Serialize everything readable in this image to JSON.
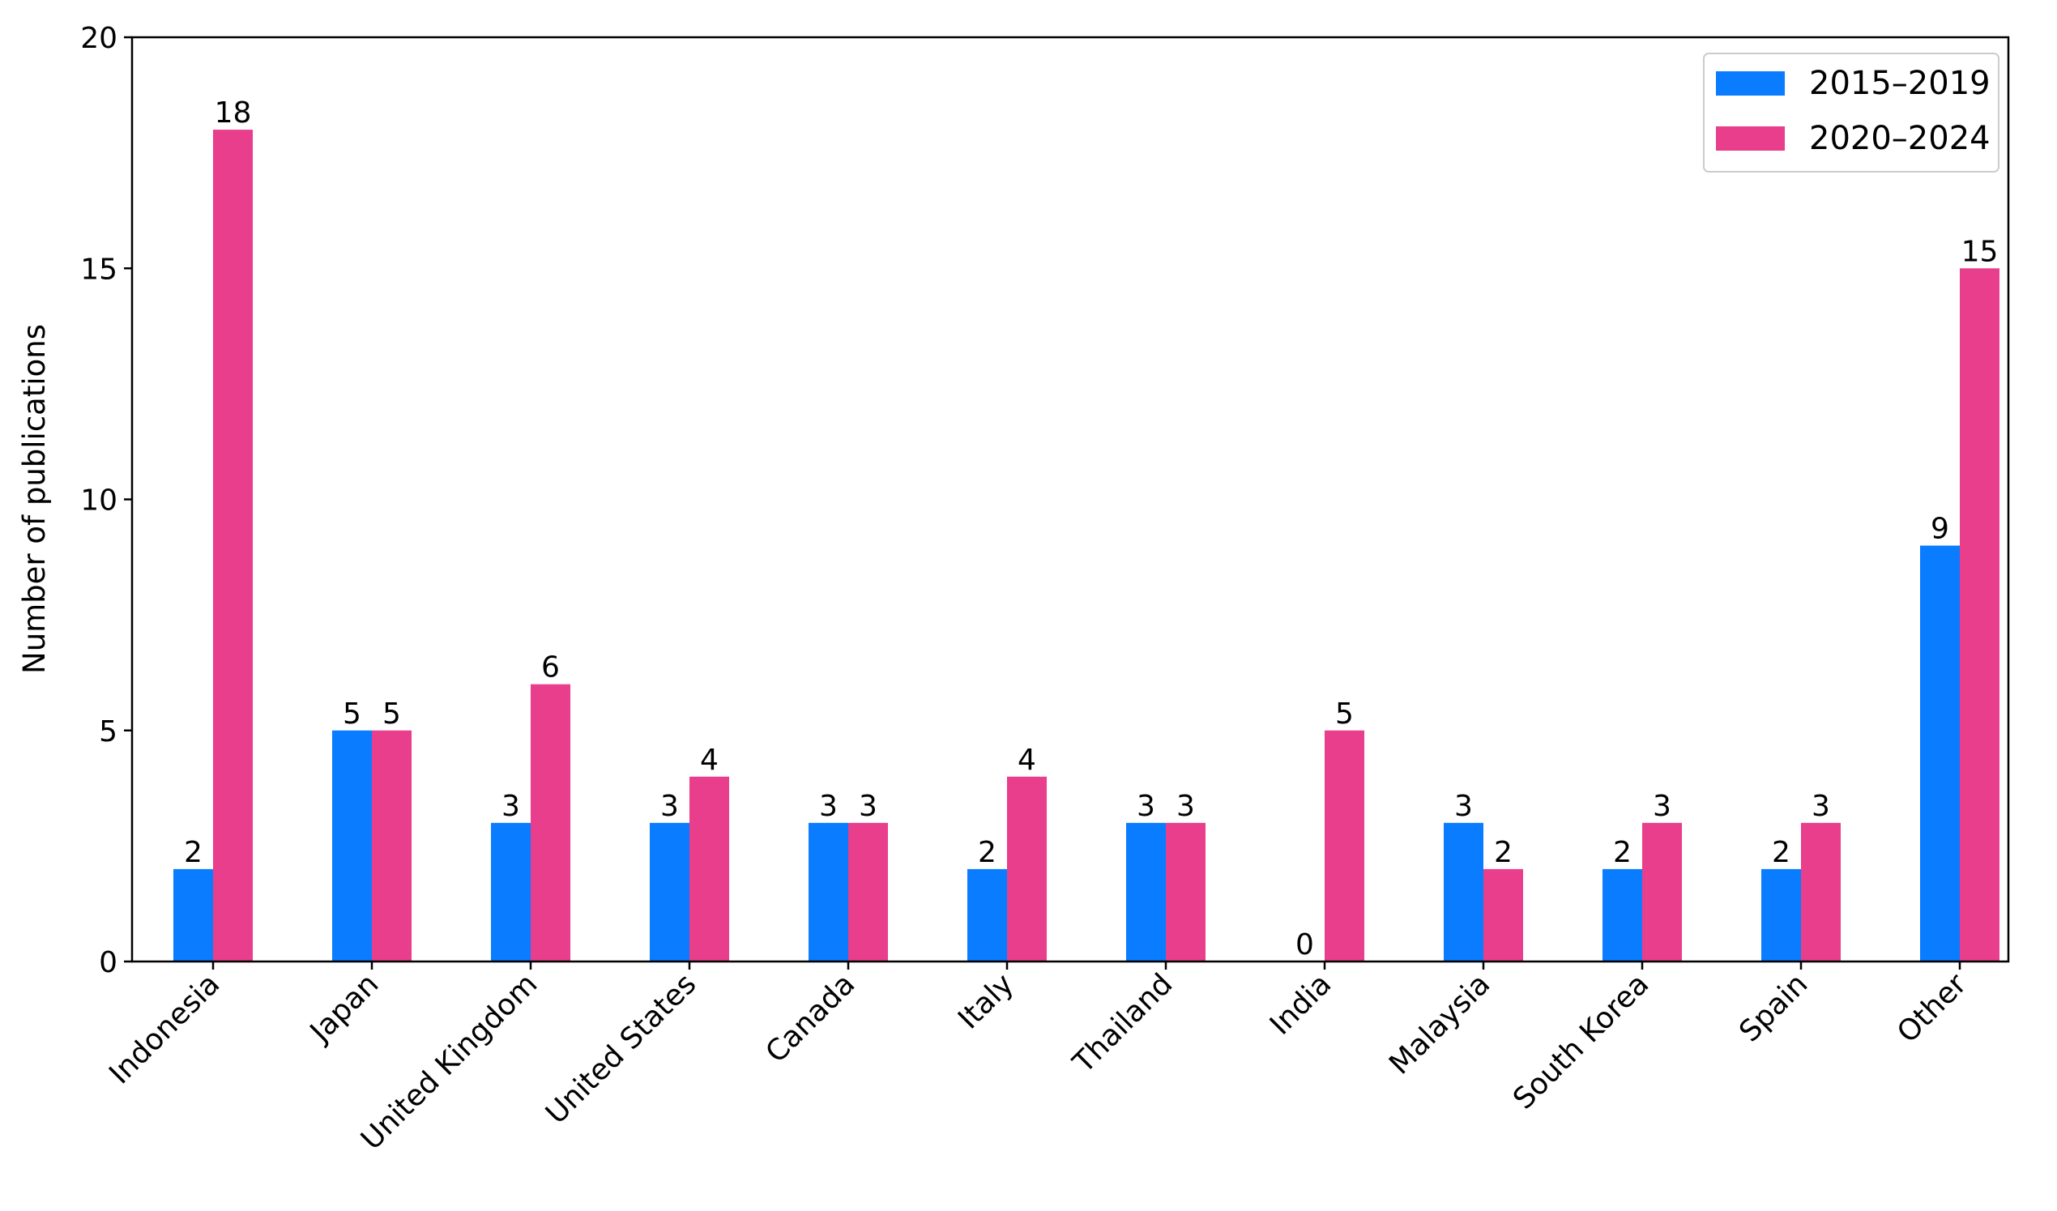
{
  "chart_data": {
    "type": "bar",
    "title": "",
    "xlabel": "",
    "ylabel": "Number of publications",
    "ylim": [
      0,
      20
    ],
    "yticks": [
      0,
      5,
      10,
      15,
      20
    ],
    "grid": false,
    "legend_position": "top-right",
    "categories": [
      "Indonesia",
      "Japan",
      "United Kingdom",
      "United States",
      "Canada",
      "Italy",
      "Thailand",
      "India",
      "Malaysia",
      "South Korea",
      "Spain",
      "Other"
    ],
    "series": [
      {
        "name": "2015–2019",
        "color": "#0a7cff",
        "values": [
          2,
          5,
          3,
          3,
          3,
          2,
          3,
          0,
          3,
          2,
          2,
          9
        ]
      },
      {
        "name": "2020–2024",
        "color": "#e83e8c",
        "values": [
          18,
          5,
          6,
          4,
          3,
          4,
          3,
          5,
          2,
          3,
          3,
          15
        ]
      }
    ]
  }
}
